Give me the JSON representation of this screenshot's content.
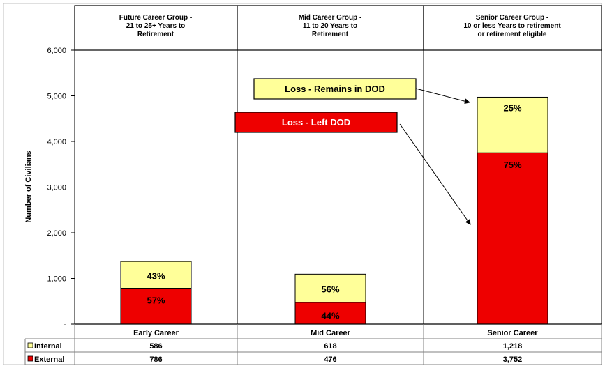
{
  "chart_data": {
    "type": "bar",
    "stacked": true,
    "categories": [
      "Early Career",
      "Mid Career",
      "Senior Career"
    ],
    "group_headers": [
      [
        "Future Career Group -",
        "21 to 25+ Years to",
        "Retirement"
      ],
      [
        "Mid Career Group -",
        "11 to 20 Years to",
        "Retirement"
      ],
      [
        "Senior Career Group -",
        "10 or less Years to retirement",
        "or retirement eligible"
      ]
    ],
    "ylabel": "Number of Civilians",
    "ylim": [
      0,
      6000
    ],
    "yticks": [
      0,
      1000,
      2000,
      3000,
      4000,
      5000,
      6000
    ],
    "ytick_labels": [
      "-",
      "1,000",
      "2,000",
      "3,000",
      "4,000",
      "5,000",
      "6,000"
    ],
    "series": [
      {
        "name": "External",
        "values": [
          786,
          476,
          3752
        ],
        "value_labels": [
          "786",
          "476",
          "3,752"
        ],
        "percent_labels": [
          "57%",
          "44%",
          "75%"
        ]
      },
      {
        "name": "Internal",
        "values": [
          586,
          618,
          1218
        ],
        "value_labels": [
          "586",
          "618",
          "1,218"
        ],
        "percent_labels": [
          "43%",
          "56%",
          "25%"
        ]
      }
    ],
    "annotations": [
      "Loss - Remains in DOD",
      "Loss - Left DOD"
    ],
    "colors": {
      "internal": "#ffff99",
      "external": "#ee0000"
    }
  }
}
